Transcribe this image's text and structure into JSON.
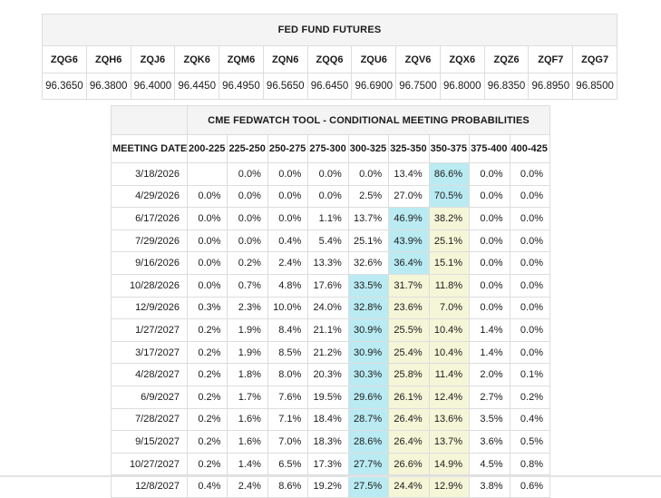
{
  "futures_table": {
    "title": "FED FUND FUTURES",
    "contracts": [
      "ZQG6",
      "ZQH6",
      "ZQJ6",
      "ZQK6",
      "ZQM6",
      "ZQN6",
      "ZQQ6",
      "ZQU6",
      "ZQV6",
      "ZQX6",
      "ZQZ6",
      "ZQF7",
      "ZQG7"
    ],
    "prices": [
      "96.3650",
      "96.3800",
      "96.4000",
      "96.4450",
      "96.4950",
      "96.5650",
      "96.6450",
      "96.6900",
      "96.7500",
      "96.8000",
      "96.8350",
      "96.8950",
      "96.8500"
    ]
  },
  "fedwatch_table": {
    "title": "CME FEDWATCH TOOL - CONDITIONAL MEETING PROBABILITIES",
    "date_header": "MEETING DATE",
    "rate_headers": [
      "200-225",
      "225-250",
      "250-275",
      "275-300",
      "300-325",
      "325-350",
      "350-375",
      "375-400",
      "400-425"
    ],
    "rows": [
      {
        "date": "3/18/2026",
        "cells": [
          "",
          "0.0%",
          "0.0%",
          "0.0%",
          "0.0%",
          "13.4%",
          "86.6%",
          "0.0%",
          "0.0%"
        ],
        "hl": [
          "",
          "",
          "",
          "",
          "",
          "",
          "c",
          "",
          ""
        ]
      },
      {
        "date": "4/29/2026",
        "cells": [
          "0.0%",
          "0.0%",
          "0.0%",
          "0.0%",
          "2.5%",
          "27.0%",
          "70.5%",
          "0.0%",
          "0.0%"
        ],
        "hl": [
          "",
          "",
          "",
          "",
          "",
          "",
          "c",
          "",
          ""
        ]
      },
      {
        "date": "6/17/2026",
        "cells": [
          "0.0%",
          "0.0%",
          "0.0%",
          "1.1%",
          "13.7%",
          "46.9%",
          "38.2%",
          "0.0%",
          "0.0%"
        ],
        "hl": [
          "",
          "",
          "",
          "",
          "",
          "c",
          "y",
          "",
          ""
        ]
      },
      {
        "date": "7/29/2026",
        "cells": [
          "0.0%",
          "0.0%",
          "0.4%",
          "5.4%",
          "25.1%",
          "43.9%",
          "25.1%",
          "0.0%",
          "0.0%"
        ],
        "hl": [
          "",
          "",
          "",
          "",
          "",
          "c",
          "y",
          "",
          ""
        ]
      },
      {
        "date": "9/16/2026",
        "cells": [
          "0.0%",
          "0.2%",
          "2.4%",
          "13.3%",
          "32.6%",
          "36.4%",
          "15.1%",
          "0.0%",
          "0.0%"
        ],
        "hl": [
          "",
          "",
          "",
          "",
          "",
          "c",
          "y",
          "",
          ""
        ]
      },
      {
        "date": "10/28/2026",
        "cells": [
          "0.0%",
          "0.7%",
          "4.8%",
          "17.6%",
          "33.5%",
          "31.7%",
          "11.8%",
          "0.0%",
          "0.0%"
        ],
        "hl": [
          "",
          "",
          "",
          "",
          "c",
          "y",
          "y",
          "",
          ""
        ]
      },
      {
        "date": "12/9/2026",
        "cells": [
          "0.3%",
          "2.3%",
          "10.0%",
          "24.0%",
          "32.8%",
          "23.6%",
          "7.0%",
          "0.0%",
          "0.0%"
        ],
        "hl": [
          "",
          "",
          "",
          "",
          "c",
          "y",
          "y",
          "",
          ""
        ]
      },
      {
        "date": "1/27/2027",
        "cells": [
          "0.2%",
          "1.9%",
          "8.4%",
          "21.1%",
          "30.9%",
          "25.5%",
          "10.4%",
          "1.4%",
          "0.0%"
        ],
        "hl": [
          "",
          "",
          "",
          "",
          "c",
          "y",
          "y",
          "",
          ""
        ]
      },
      {
        "date": "3/17/2027",
        "cells": [
          "0.2%",
          "1.9%",
          "8.5%",
          "21.2%",
          "30.9%",
          "25.4%",
          "10.4%",
          "1.4%",
          "0.0%"
        ],
        "hl": [
          "",
          "",
          "",
          "",
          "c",
          "y",
          "y",
          "",
          ""
        ]
      },
      {
        "date": "4/28/2027",
        "cells": [
          "0.2%",
          "1.8%",
          "8.0%",
          "20.3%",
          "30.3%",
          "25.8%",
          "11.4%",
          "2.0%",
          "0.1%"
        ],
        "hl": [
          "",
          "",
          "",
          "",
          "c",
          "y",
          "y",
          "",
          ""
        ]
      },
      {
        "date": "6/9/2027",
        "cells": [
          "0.2%",
          "1.7%",
          "7.6%",
          "19.5%",
          "29.6%",
          "26.1%",
          "12.4%",
          "2.7%",
          "0.2%"
        ],
        "hl": [
          "",
          "",
          "",
          "",
          "c",
          "y",
          "y",
          "",
          ""
        ]
      },
      {
        "date": "7/28/2027",
        "cells": [
          "0.2%",
          "1.6%",
          "7.1%",
          "18.4%",
          "28.7%",
          "26.4%",
          "13.6%",
          "3.5%",
          "0.4%"
        ],
        "hl": [
          "",
          "",
          "",
          "",
          "c",
          "y",
          "y",
          "",
          ""
        ]
      },
      {
        "date": "9/15/2027",
        "cells": [
          "0.2%",
          "1.6%",
          "7.0%",
          "18.3%",
          "28.6%",
          "26.4%",
          "13.7%",
          "3.6%",
          "0.5%"
        ],
        "hl": [
          "",
          "",
          "",
          "",
          "c",
          "y",
          "y",
          "",
          ""
        ]
      },
      {
        "date": "10/27/2027",
        "cells": [
          "0.2%",
          "1.4%",
          "6.5%",
          "17.3%",
          "27.7%",
          "26.6%",
          "14.9%",
          "4.5%",
          "0.8%"
        ],
        "hl": [
          "",
          "",
          "",
          "",
          "c",
          "y",
          "y",
          "",
          ""
        ]
      },
      {
        "date": "12/8/2027",
        "cells": [
          "0.4%",
          "2.4%",
          "8.6%",
          "19.2%",
          "27.5%",
          "24.4%",
          "12.9%",
          "3.8%",
          "0.6%"
        ],
        "hl": [
          "",
          "",
          "",
          "",
          "c",
          "y",
          "y",
          "",
          ""
        ]
      }
    ]
  },
  "colors": {
    "cyan_highlight": "#baebf3",
    "yellow_highlight": "#f5f5d8",
    "title_bg": "#f4f4f4",
    "border": "#dddddd",
    "bottom_divider": "#e2e2e2"
  }
}
